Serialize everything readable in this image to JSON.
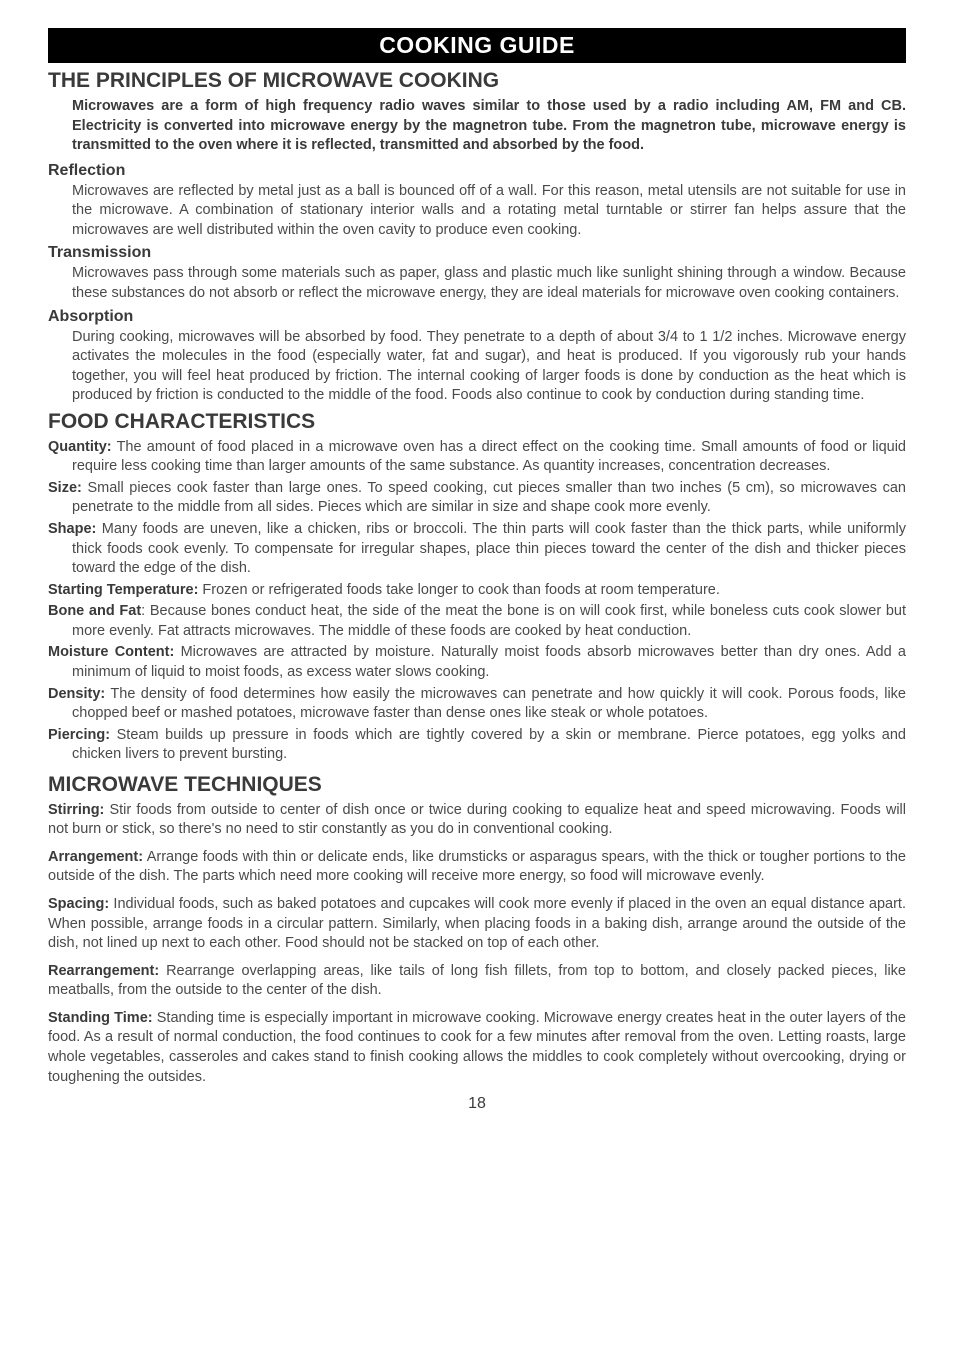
{
  "banner": "COOKING GUIDE",
  "principles": {
    "title": "THE PRINCIPLES OF MICROWAVE COOKING",
    "intro": "Microwaves are a form of high frequency radio waves similar to those used by a radio including AM, FM and CB. Electricity is converted into microwave energy by the magnetron tube. From the magnetron tube, microwave energy is transmitted to the oven where it is reflected, transmitted and absorbed by the food.",
    "reflection": {
      "head": "Reflection",
      "body": "Microwaves are reflected by metal just as a ball is bounced off of a wall. For this reason, metal utensils are not suitable for use in the microwave. A combination of stationary interior walls and a rotating metal turntable or stirrer fan helps assure that the microwaves are well distributed within the oven cavity to produce even cooking."
    },
    "transmission": {
      "head": "Transmission",
      "body": "Microwaves pass through some materials such as paper, glass and plastic much like sunlight shining through a window. Because these substances do not absorb or reflect the microwave energy, they are ideal materials for microwave oven cooking containers."
    },
    "absorption": {
      "head": "Absorption",
      "body": "During cooking, microwaves will be absorbed by food. They penetrate to a depth of about 3/4 to 1 1/2  inches. Microwave energy activates the molecules in the food (especially water, fat and sugar), and heat is produced. If you vigorously rub your hands together, you will feel heat produced by friction. The internal cooking of larger foods is done by conduction as the heat which is produced by friction is conducted to the middle of the food. Foods also continue to cook by conduction during standing time."
    }
  },
  "characteristics": {
    "title": "FOOD CHARACTERISTICS",
    "items": [
      {
        "lead": "Quantity:",
        "body": " The amount of food placed in a microwave oven has a direct effect on the cooking time. Small amounts of food or liquid require less cooking time than larger amounts of the same substance. As quantity increases, concentration decreases."
      },
      {
        "lead": "Size:",
        "body": " Small pieces cook faster than large ones. To speed cooking, cut pieces smaller than two inches (5 cm), so microwaves can penetrate to the middle from all sides. Pieces which are similar in size and shape cook more evenly."
      },
      {
        "lead": "Shape:",
        "body": " Many foods are uneven, like a chicken, ribs or broccoli. The thin parts will cook faster than the thick parts, while uniformly thick foods cook evenly. To compensate for irregular shapes, place thin pieces toward the center of the dish and thicker pieces toward the edge of the dish."
      },
      {
        "lead": "Starting Temperature:",
        "body": " Frozen or refrigerated foods take longer to cook than foods at room temperature."
      },
      {
        "lead": "Bone and Fat",
        "body": ": Because bones conduct heat, the side of the meat the bone is on will cook first, while boneless cuts cook slower but more evenly. Fat attracts microwaves. The middle of these foods are cooked by heat conduction."
      },
      {
        "lead": "Moisture Content:",
        "body": " Microwaves are attracted by moisture. Naturally moist foods absorb microwaves better than dry ones. Add a minimum of liquid to moist foods, as excess water slows cooking."
      },
      {
        "lead": "Density:",
        "body": " The density of food determines how easily the microwaves can penetrate and how quickly it will cook. Porous foods, like chopped beef or mashed potatoes, microwave faster than dense ones like steak or whole potatoes."
      },
      {
        "lead": "Piercing:",
        "body": " Steam builds up pressure in foods which are tightly covered by a skin or membrane. Pierce potatoes, egg yolks and chicken livers to prevent bursting."
      }
    ]
  },
  "techniques": {
    "title": "MICROWAVE TECHNIQUES",
    "items": [
      {
        "lead": "Stirring:",
        "body": " Stir foods from outside to center of dish once or twice during cooking to equalize heat and speed microwaving. Foods will not burn or stick, so there's no need to stir constantly as you do in conventional cooking."
      },
      {
        "lead": "Arrangement:",
        "body": " Arrange foods with thin or delicate ends, like drumsticks or asparagus spears, with the thick or tougher portions to the outside of the dish. The parts which need more cooking will receive more energy, so food will microwave evenly."
      },
      {
        "lead": "Spacing:",
        "body": " Individual foods, such as baked potatoes and cupcakes will cook more evenly if placed in the oven an equal distance apart. When possible, arrange foods in a circular pattern. Similarly, when placing foods in a baking dish, arrange around the outside of the dish, not lined up next to each other. Food should not be stacked on top of each other."
      },
      {
        "lead": "Rearrangement:",
        "body": " Rearrange overlapping areas, like tails of long fish fillets, from top to bottom, and closely packed pieces, like meatballs, from the outside to the center of the dish."
      },
      {
        "lead": "Standing Time:",
        "body": " Standing time is especially important in microwave cooking. Microwave energy creates heat in the outer layers of the food. As a result of normal conduction, the food continues to cook for a few minutes after removal from the oven. Letting roasts, large whole vegetables, casseroles and cakes stand to finish cooking allows the middles to cook completely without overcooking, drying or toughening the outsides."
      }
    ]
  },
  "pageNumber": "18"
}
